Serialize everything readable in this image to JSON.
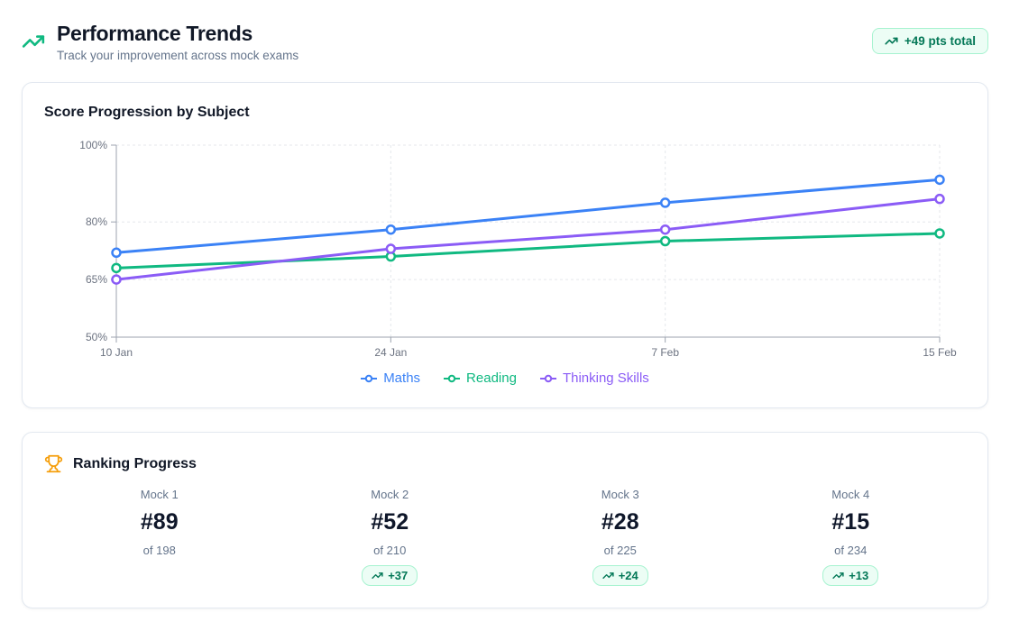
{
  "header": {
    "title": "Performance Trends",
    "subtitle": "Track your improvement across mock exams",
    "total_badge": "+49 pts total"
  },
  "icons": {
    "header": "trending-up-icon",
    "total_badge": "trending-up-icon",
    "ranking": "trophy-icon",
    "rank_change": "trending-up-icon"
  },
  "colors": {
    "accent_green": "#10b981",
    "badge_bg": "#ecfdf5",
    "badge_border": "#a7f3d0",
    "badge_text": "#047857",
    "trophy": "#f59e0b",
    "axis_line": "#9ca3af",
    "grid_line": "#e5e7eb",
    "axis_text": "#6b7280"
  },
  "chart_data": {
    "type": "line",
    "title": "Score Progression by Subject",
    "categories": [
      "10 Jan",
      "24 Jan",
      "7 Feb",
      "15 Feb"
    ],
    "series": [
      {
        "name": "Maths",
        "color": "#3b82f6",
        "values": [
          72,
          78,
          85,
          91
        ]
      },
      {
        "name": "Reading",
        "color": "#10b981",
        "values": [
          68,
          71,
          75,
          77
        ]
      },
      {
        "name": "Thinking Skills",
        "color": "#8b5cf6",
        "values": [
          65,
          73,
          78,
          86
        ]
      }
    ],
    "xlabel": "",
    "ylabel": "",
    "ylim": [
      50,
      100
    ],
    "yticks": [
      50,
      65,
      80,
      100
    ],
    "ytick_labels": [
      "50%",
      "65%",
      "80%",
      "100%"
    ],
    "grid": true,
    "grid_style": "dashed",
    "legend_position": "bottom",
    "marker": "open-circle"
  },
  "ranking_card": {
    "title": "Ranking Progress",
    "items": [
      {
        "label": "Mock 1",
        "rank": "#89",
        "of": "of 198",
        "change": null
      },
      {
        "label": "Mock 2",
        "rank": "#52",
        "of": "of 210",
        "change": "+37"
      },
      {
        "label": "Mock 3",
        "rank": "#28",
        "of": "of 225",
        "change": "+24"
      },
      {
        "label": "Mock 4",
        "rank": "#15",
        "of": "of 234",
        "change": "+13"
      }
    ]
  }
}
